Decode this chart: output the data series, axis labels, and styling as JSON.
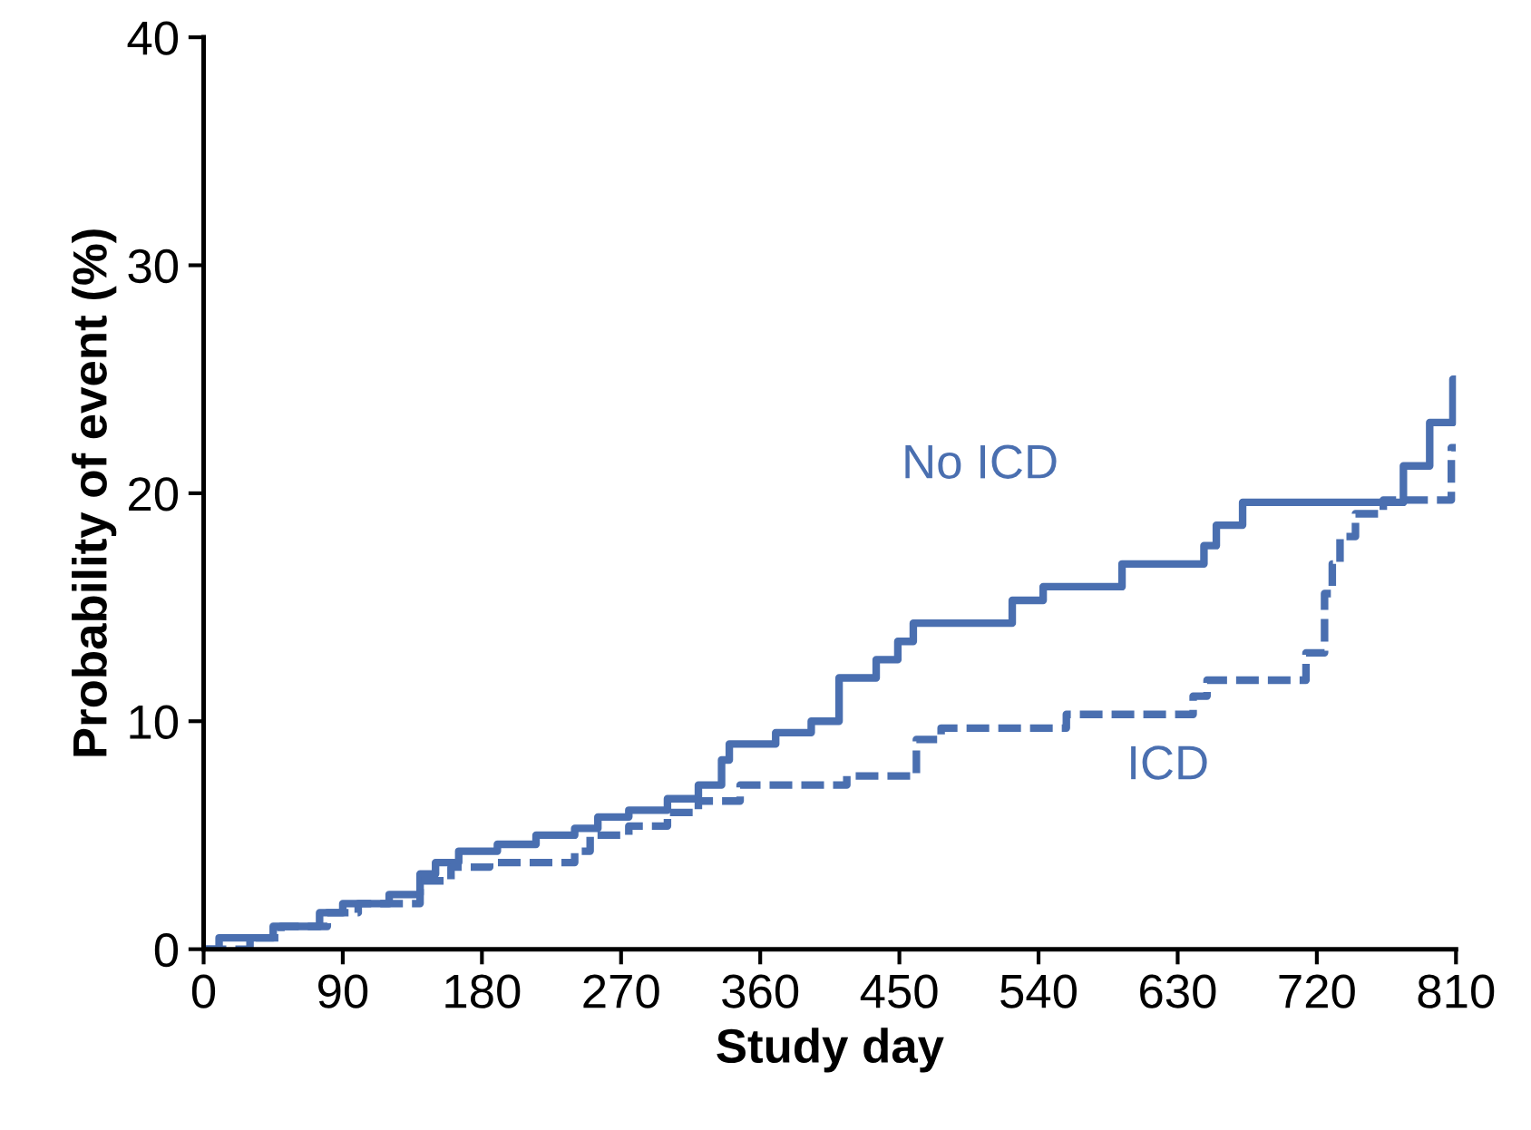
{
  "chart_data": {
    "type": "step",
    "xlabel": "Study day",
    "ylabel": "Probability of event (%)",
    "xlim": [
      0,
      810
    ],
    "xticks": [
      0,
      90,
      180,
      270,
      360,
      450,
      540,
      630,
      720,
      810
    ],
    "ylim": [
      0,
      40
    ],
    "yticks": [
      0,
      10,
      20,
      30,
      40
    ],
    "grid": false,
    "legend": false,
    "marker": "none",
    "series": [
      {
        "name": "No ICD",
        "color": "#4a6fb0",
        "line_style": "solid",
        "x": [
          0,
          10,
          45,
          75,
          90,
          120,
          140,
          150,
          165,
          190,
          215,
          240,
          255,
          275,
          300,
          320,
          335,
          340,
          370,
          393,
          411,
          435,
          449,
          459,
          523,
          543,
          594,
          647,
          655,
          672,
          776,
          793,
          808,
          810
        ],
        "values": [
          0,
          0.5,
          1.0,
          1.6,
          2.0,
          2.4,
          3.3,
          3.8,
          4.3,
          4.6,
          5.0,
          5.3,
          5.8,
          6.1,
          6.6,
          7.2,
          8.3,
          9.0,
          9.5,
          10.0,
          11.9,
          12.7,
          13.5,
          14.3,
          15.3,
          15.9,
          16.9,
          17.7,
          18.6,
          19.6,
          21.2,
          23.1,
          25.0,
          25.0
        ]
      },
      {
        "name": "ICD",
        "color": "#4a6fb0",
        "line_style": "dashed",
        "x": [
          0,
          30,
          50,
          80,
          100,
          140,
          160,
          185,
          240,
          250,
          275,
          300,
          320,
          347,
          416,
          461,
          470,
          477,
          558,
          640,
          649,
          713,
          725,
          730,
          735,
          745,
          763,
          807,
          810
        ],
        "values": [
          0,
          0.5,
          1.0,
          1.6,
          2.0,
          3.0,
          3.6,
          3.8,
          4.3,
          5.0,
          5.4,
          6.0,
          6.5,
          7.2,
          7.6,
          9.2,
          9.2,
          9.7,
          10.3,
          11.1,
          11.8,
          13.0,
          15.6,
          16.9,
          18.1,
          19.1,
          19.7,
          22.0,
          22.0
        ]
      }
    ]
  }
}
